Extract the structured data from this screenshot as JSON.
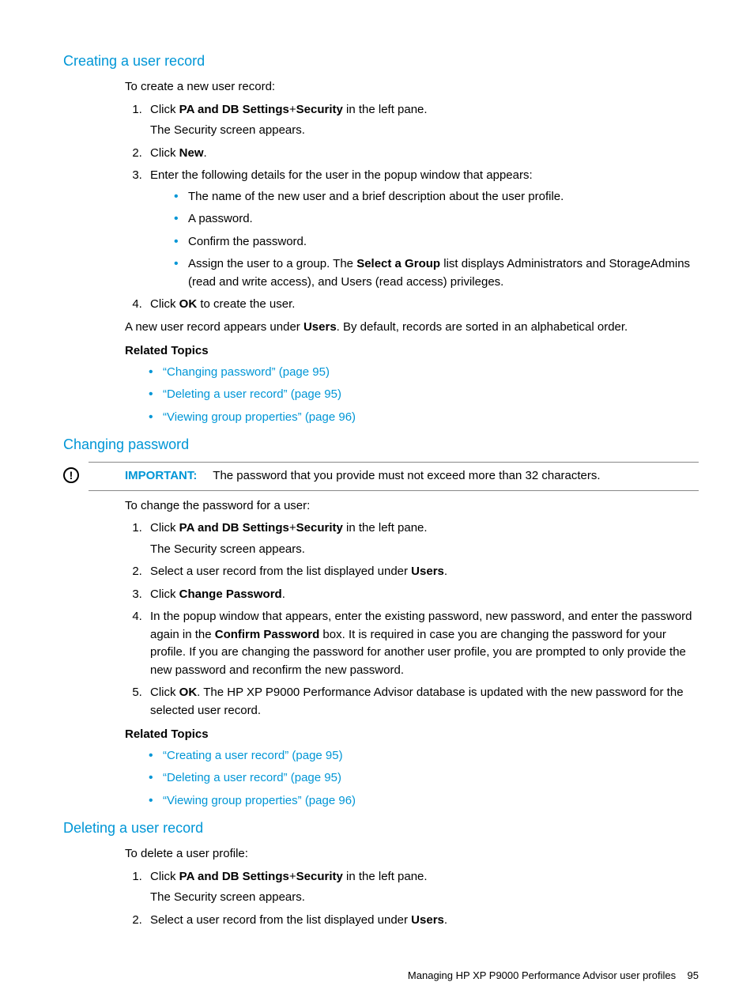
{
  "colors": {
    "accent": "#0096d6",
    "text": "#000000",
    "rule": "#888888",
    "background": "#ffffff"
  },
  "typography": {
    "body_font": "Arial, Helvetica, sans-serif",
    "body_size_pt": 11,
    "heading_size_pt": 14
  },
  "sections": {
    "create": {
      "heading": "Creating a user record",
      "intro": "To create a new user record:",
      "steps": [
        {
          "html": "Click <b>PA and DB Settings</b>+<b>Security</b> in the left pane.",
          "sub": "The Security screen appears."
        },
        {
          "html": "Click <b>New</b>."
        },
        {
          "html": "Enter the following details for the user in the popup window that appears:",
          "bullets": [
            "The name of the new user and a brief description about the user profile.",
            "A password.",
            "Confirm the password.",
            "Assign the user to a group. The <b>Select a Group</b> list displays Administrators and StorageAdmins (read and write access), and Users (read access) privileges."
          ]
        },
        {
          "html": "Click <b>OK</b> to create the user."
        }
      ],
      "after_html": "A new user record appears under <b>Users</b>. By default, records are sorted in an alphabetical order.",
      "related_heading": "Related Topics",
      "related": [
        "“Changing password” (page 95)",
        "“Deleting a user record” (page 95)",
        "“Viewing group properties” (page 96)"
      ]
    },
    "change": {
      "heading": "Changing password",
      "important_label": "IMPORTANT:",
      "important_text": "The password that you provide must not exceed more than 32 characters.",
      "intro": "To change the password for a user:",
      "steps": [
        {
          "html": "Click <b>PA and DB Settings</b>+<b>Security</b> in the left pane.",
          "sub": "The Security screen appears."
        },
        {
          "html": "Select a user record from the list displayed under <b>Users</b>."
        },
        {
          "html": "Click <b>Change Password</b>."
        },
        {
          "html": "In the popup window that appears, enter the existing password, new password, and enter the password again in the <b>Confirm Password</b> box. It is required in case you are changing the password for your profile. If you are changing the password for another user profile, you are prompted to only provide the new password and reconfirm the new password."
        },
        {
          "html": "Click <b>OK</b>. The HP XP P9000 Performance Advisor database is updated with the new password for the selected user record."
        }
      ],
      "related_heading": "Related Topics",
      "related": [
        "“Creating a user record” (page 95)",
        "“Deleting a user record” (page 95)",
        "“Viewing group properties” (page 96)"
      ]
    },
    "delete": {
      "heading": "Deleting a user record",
      "intro": "To delete a user profile:",
      "steps": [
        {
          "html": "Click <b>PA and DB Settings</b>+<b>Security</b> in the left pane.",
          "sub": "The Security screen appears."
        },
        {
          "html": "Select a user record from the list displayed under <b>Users</b>."
        }
      ]
    }
  },
  "footer": {
    "text": "Managing HP XP P9000 Performance Advisor user profiles",
    "page": "95"
  }
}
